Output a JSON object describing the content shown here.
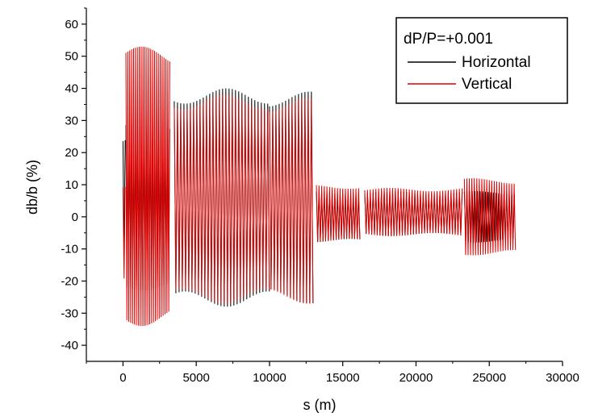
{
  "chart_data": {
    "type": "line",
    "title": "",
    "xlabel": "s (m)",
    "ylabel": "db/b (%)",
    "xlim": [
      -2500,
      30000
    ],
    "ylim": [
      -45,
      65
    ],
    "xticks": [
      0,
      5000,
      10000,
      15000,
      20000,
      25000,
      30000
    ],
    "yticks": [
      -40,
      -30,
      -20,
      -10,
      0,
      10,
      20,
      30,
      40,
      50,
      60
    ],
    "grid": false,
    "legend": {
      "title": "dP/P=+0.001",
      "placement": "top-right",
      "entries": [
        {
          "name": "Horizontal",
          "color": "#000000"
        },
        {
          "name": "Vertical",
          "color": "#e00000"
        }
      ]
    },
    "series": [
      {
        "name": "Horizontal",
        "color": "#000000",
        "description": "oscillating beta-beat envelope per section",
        "segments": [
          {
            "x_start": 0,
            "x_end": 200,
            "min": -15,
            "max": 25,
            "period": 150
          },
          {
            "x_start": 200,
            "x_end": 3200,
            "min": -23,
            "max": 30,
            "period": 130
          },
          {
            "x_start": 3500,
            "x_end": 10000,
            "min": -28,
            "max": 40,
            "period": 220
          },
          {
            "x_start": 10000,
            "x_end": 13000,
            "min": -27,
            "max": 39,
            "period": 220
          },
          {
            "x_start": 13200,
            "x_end": 16200,
            "min": -8,
            "max": 8,
            "period": 180
          },
          {
            "x_start": 16500,
            "x_end": 23200,
            "min": -6,
            "max": 8,
            "period": 190
          },
          {
            "x_start": 23300,
            "x_end": 26800,
            "min": -8,
            "max": 8,
            "period": 180
          }
        ]
      },
      {
        "name": "Vertical",
        "color": "#e00000",
        "description": "oscillating beta-beat envelope per section",
        "segments": [
          {
            "x_start": 0,
            "x_end": 200,
            "min": -20,
            "max": 10,
            "period": 150
          },
          {
            "x_start": 200,
            "x_end": 3200,
            "min": -34,
            "max": 53,
            "period": 130
          },
          {
            "x_start": 3500,
            "x_end": 10000,
            "min": -27,
            "max": 38,
            "period": 220
          },
          {
            "x_start": 10000,
            "x_end": 13000,
            "min": -27,
            "max": 37,
            "period": 220
          },
          {
            "x_start": 13200,
            "x_end": 16200,
            "min": -8,
            "max": 10,
            "period": 180
          },
          {
            "x_start": 16500,
            "x_end": 23200,
            "min": -6,
            "max": 9,
            "period": 190
          },
          {
            "x_start": 23300,
            "x_end": 26800,
            "min": -12,
            "max": 12,
            "period": 170
          }
        ]
      }
    ]
  }
}
